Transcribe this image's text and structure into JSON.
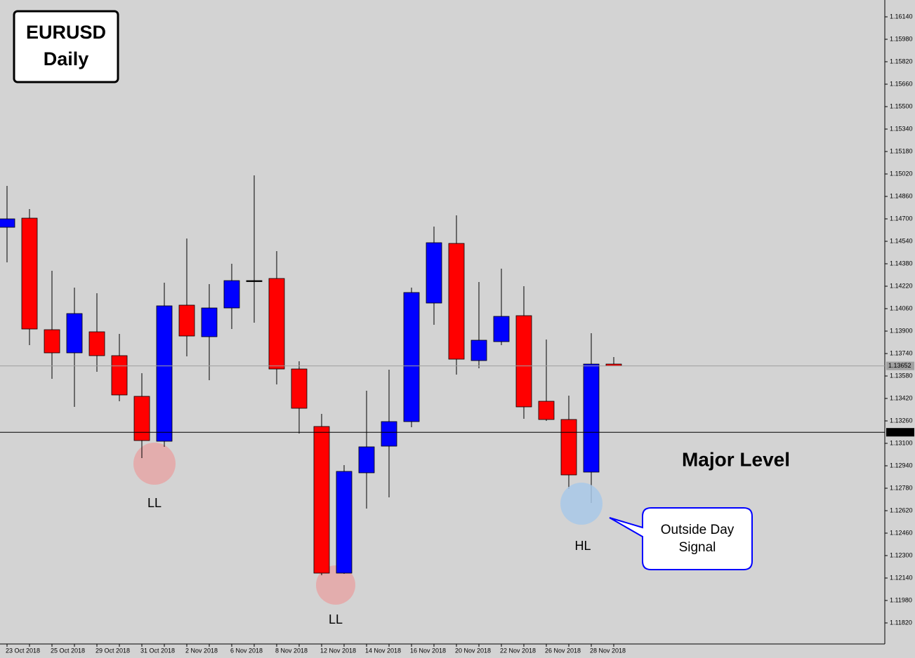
{
  "chart_data": {
    "type": "candlestick",
    "title_lines": [
      "EURUSD",
      "Daily"
    ],
    "categories": [
      "23 Oct 2018",
      null,
      "25 Oct 2018",
      null,
      "29 Oct 2018",
      null,
      "31 Oct 2018",
      null,
      "2 Nov 2018",
      null,
      "6 Nov 2018",
      null,
      "8 Nov 2018",
      null,
      "12 Nov 2018",
      null,
      "14 Nov 2018",
      null,
      "16 Nov 2018",
      null,
      "20 Nov 2018",
      null,
      "22 Nov 2018",
      null,
      "26 Nov 2018",
      null,
      "28 Nov 2018",
      null
    ],
    "series": [
      {
        "open": [
          1.1464,
          1.14705,
          1.1391,
          1.13745,
          1.13895,
          1.13725,
          1.13435,
          1.13115,
          1.14085,
          1.1386,
          1.14065,
          1.1426,
          1.14275,
          1.1363,
          1.1322,
          1.12175,
          1.1289,
          1.1308,
          1.13255,
          1.141,
          1.14525,
          1.1369,
          1.13825,
          1.1401,
          1.134,
          1.1327,
          1.12895,
          1.13665
        ],
        "high": [
          1.14935,
          1.1477,
          1.1433,
          1.1421,
          1.1417,
          1.1388,
          1.136,
          1.14245,
          1.1456,
          1.14235,
          1.1438,
          1.1501,
          1.1447,
          1.13685,
          1.1331,
          1.12945,
          1.13475,
          1.13625,
          1.1421,
          1.14645,
          1.14725,
          1.1425,
          1.14345,
          1.1422,
          1.1384,
          1.1344,
          1.13885,
          1.13715
        ],
        "low": [
          1.1439,
          1.138,
          1.1356,
          1.1336,
          1.1361,
          1.134,
          1.12995,
          1.13075,
          1.1372,
          1.1355,
          1.13915,
          1.1396,
          1.1352,
          1.1317,
          1.1216,
          1.1217,
          1.12635,
          1.12715,
          1.13215,
          1.13945,
          1.1359,
          1.13635,
          1.138,
          1.13275,
          1.1326,
          1.12775,
          1.12675,
          1.1365
        ],
        "close": [
          1.147,
          1.13915,
          1.13745,
          1.14025,
          1.13725,
          1.13445,
          1.1312,
          1.1408,
          1.13865,
          1.14065,
          1.1426,
          1.1426,
          1.1363,
          1.1335,
          1.12175,
          1.129,
          1.13075,
          1.13255,
          1.14175,
          1.1453,
          1.137,
          1.13835,
          1.14005,
          1.1336,
          1.1327,
          1.12875,
          1.13665,
          1.13652
        ]
      }
    ],
    "up_color": "#0000ff",
    "down_color": "#ff0000",
    "doji_color": "#000000",
    "ylim": [
      1.1167,
      1.1626
    ],
    "yticks": [
      {
        "value": 1.1614,
        "label": "1.16140"
      },
      {
        "value": 1.1598,
        "label": "1.15980"
      },
      {
        "value": 1.1582,
        "label": "1.15820"
      },
      {
        "value": 1.1566,
        "label": "1.15660"
      },
      {
        "value": 1.155,
        "label": "1.15500"
      },
      {
        "value": 1.1534,
        "label": "1.15340"
      },
      {
        "value": 1.1518,
        "label": "1.15180"
      },
      {
        "value": 1.1502,
        "label": "1.15020"
      },
      {
        "value": 1.1486,
        "label": "1.14860"
      },
      {
        "value": 1.147,
        "label": "1.14700"
      },
      {
        "value": 1.1454,
        "label": "1.14540"
      },
      {
        "value": 1.1438,
        "label": "1.14380"
      },
      {
        "value": 1.1422,
        "label": "1.14220"
      },
      {
        "value": 1.1406,
        "label": "1.14060"
      },
      {
        "value": 1.139,
        "label": "1.13900"
      },
      {
        "value": 1.1374,
        "label": "1.13740"
      },
      {
        "value": 1.1358,
        "label": "1.13580"
      },
      {
        "value": 1.1342,
        "label": "1.13420"
      },
      {
        "value": 1.1326,
        "label": "1.13260"
      },
      {
        "value": 1.131,
        "label": "1.13100"
      },
      {
        "value": 1.1294,
        "label": "1.12940"
      },
      {
        "value": 1.1278,
        "label": "1.12780"
      },
      {
        "value": 1.1262,
        "label": "1.12620"
      },
      {
        "value": 1.1246,
        "label": "1.12460"
      },
      {
        "value": 1.123,
        "label": "1.12300"
      },
      {
        "value": 1.1214,
        "label": "1.12140"
      },
      {
        "value": 1.1198,
        "label": "1.11980"
      },
      {
        "value": 1.1182,
        "label": "1.11820"
      }
    ],
    "level_lines": [
      {
        "price": 1.13652,
        "color": "#a0a0a0"
      },
      {
        "price": 1.13179,
        "color": "#000000"
      }
    ],
    "annotations": {
      "swing_labels": [
        "LL",
        "LL",
        "HL"
      ],
      "level_label": "Major Level",
      "callout_lines": [
        "Outside Day",
        "Signal"
      ]
    }
  }
}
